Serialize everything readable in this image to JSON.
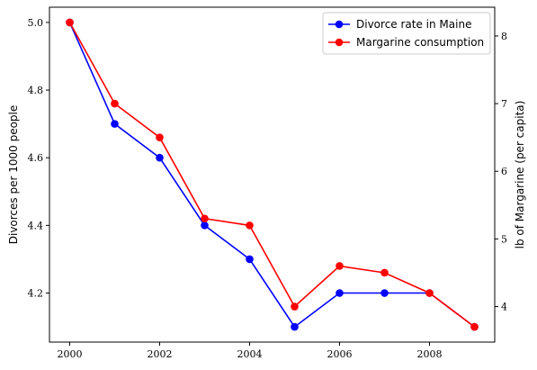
{
  "chart_data": {
    "type": "line",
    "x": [
      2000,
      2001,
      2002,
      2003,
      2004,
      2005,
      2006,
      2007,
      2008,
      2009
    ],
    "xticks": [
      "2000",
      "2002",
      "2004",
      "2006",
      "2008"
    ],
    "xlim": [
      1999.55,
      2009.45
    ],
    "series": [
      {
        "name": "Divorce rate in Maine",
        "axis": "left",
        "color": "#0000ff",
        "values": [
          5.0,
          4.7,
          4.6,
          4.4,
          4.3,
          4.1,
          4.2,
          4.2,
          4.2,
          4.1
        ]
      },
      {
        "name": "Margarine consumption",
        "axis": "right",
        "color": "#ff0000",
        "values": [
          8.2,
          7.0,
          6.5,
          5.3,
          5.2,
          4.0,
          4.6,
          4.5,
          4.2,
          3.7
        ]
      }
    ],
    "ylabel_left": "Divorces per 1000 people",
    "ylabel_right": "lb of Margarine (per capita)",
    "yticks_left": [
      "4.2",
      "4.4",
      "4.6",
      "4.8",
      "5.0"
    ],
    "yticks_right": [
      "4",
      "5",
      "6",
      "7",
      "8"
    ],
    "ylim_left": [
      4.055,
      5.045
    ],
    "ylim_right": [
      3.475,
      8.425
    ],
    "legend_position": "top-right",
    "grid": false
  }
}
